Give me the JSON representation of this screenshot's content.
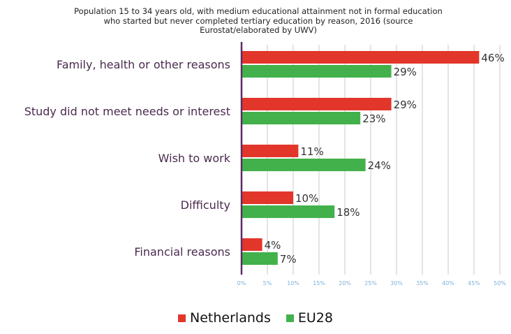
{
  "chart_data": {
    "type": "bar",
    "orientation": "horizontal",
    "title_lines": [
      "Population 15 to 34 years old, with medium educational attainment not in formal education",
      "who started but never completed tertiary education by reason, 2016 (source",
      "Eurostat/elaborated by UWV)"
    ],
    "categories": [
      "Family, health or other reasons",
      "Study did not meet needs or interest",
      "Wish to work",
      "Difficulty",
      "Financial reasons"
    ],
    "series": [
      {
        "name": "Netherlands",
        "color": "#e2362b",
        "values": [
          46,
          29,
          11,
          10,
          4
        ],
        "labels": [
          "46%",
          "29%",
          "11%",
          "10%",
          "4%"
        ]
      },
      {
        "name": "EU28",
        "color": "#43b14b",
        "values": [
          29,
          23,
          24,
          18,
          7
        ],
        "labels": [
          "29%",
          "23%",
          "24%",
          "18%",
          "7%"
        ]
      }
    ],
    "xlim": [
      0,
      50
    ],
    "xticks": [
      0,
      5,
      10,
      15,
      20,
      25,
      30,
      35,
      40,
      45,
      50
    ],
    "xtick_labels": [
      "0%",
      "5%",
      "10%",
      "15%",
      "20%",
      "25%",
      "30%",
      "35%",
      "40%",
      "45%",
      "50%"
    ],
    "grid": "vertical",
    "legend_position": "bottom",
    "xlabel": "",
    "ylabel": ""
  }
}
